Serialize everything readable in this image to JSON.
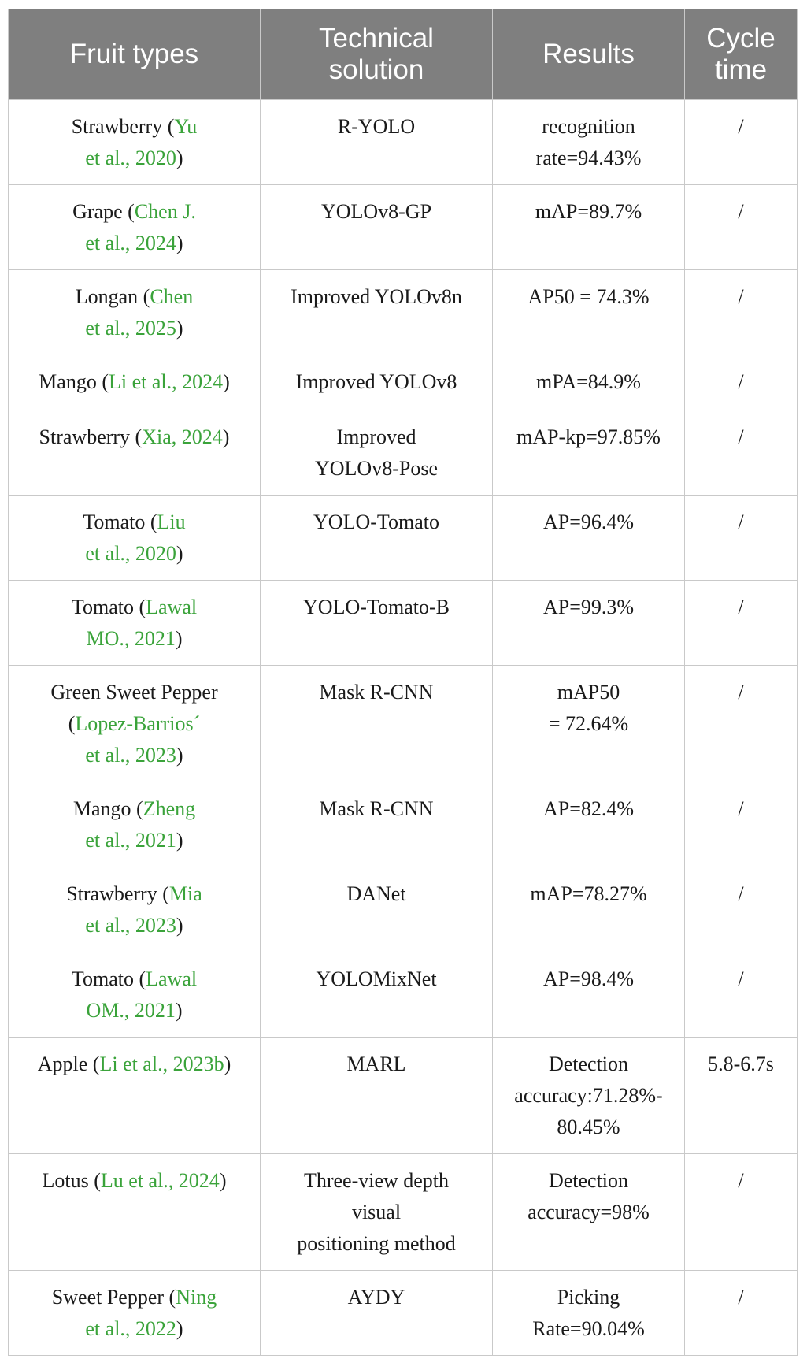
{
  "headers": [
    "Fruit types",
    "Technical\nsolution",
    "Results",
    "Cycle\ntime"
  ],
  "rows": [
    {
      "fruit": "Strawberry (",
      "cite": "Yu\net al., 2020",
      "close": ")",
      "tech": "R-YOLO",
      "result": "recognition\nrate=94.43%",
      "cycle": "/"
    },
    {
      "fruit": "Grape (",
      "cite": "Chen J.\net al., 2024",
      "close": ")",
      "tech": "YOLOv8-GP",
      "result": "mAP=89.7%",
      "cycle": "/"
    },
    {
      "fruit": "Longan (",
      "cite": "Chen\net al., 2025",
      "close": ")",
      "tech": "Improved YOLOv8n",
      "result": "AP50 = 74.3%",
      "cycle": "/"
    },
    {
      "fruit": "Mango (",
      "cite": "Li et al., 2024",
      "close": ")",
      "tech": "Improved YOLOv8",
      "result": "mPA=84.9%",
      "cycle": "/"
    },
    {
      "fruit": "Strawberry (",
      "cite": "Xia, 2024",
      "close": ")",
      "tech": "Improved\nYOLOv8-Pose",
      "result": "mAP-kp=97.85%",
      "cycle": "/"
    },
    {
      "fruit": "Tomato (",
      "cite": "Liu\net al., 2020",
      "close": ")",
      "tech": "YOLO-Tomato",
      "result": "AP=96.4%",
      "cycle": "/"
    },
    {
      "fruit": "Tomato (",
      "cite": "Lawal\nMO., 2021",
      "close": ")",
      "tech": "YOLO-Tomato-B",
      "result": "AP=99.3%",
      "cycle": "/"
    },
    {
      "fruit": "Green Sweet Pepper\n(",
      "cite": "Lopez-Barrios´\net al., 2023",
      "close": ")",
      "tech": "Mask R-CNN",
      "result": "mAP50\n= 72.64%",
      "cycle": "/"
    },
    {
      "fruit": "Mango (",
      "cite": "Zheng\net al., 2021",
      "close": ")",
      "tech": "Mask R-CNN",
      "result": "AP=82.4%",
      "cycle": "/"
    },
    {
      "fruit": "Strawberry (",
      "cite": "Mia\net al., 2023",
      "close": ")",
      "tech": "DANet",
      "result": "mAP=78.27%",
      "cycle": "/"
    },
    {
      "fruit": "Tomato (",
      "cite": "Lawal\nOM., 2021",
      "close": ")",
      "tech": "YOLOMixNet",
      "result": "AP=98.4%",
      "cycle": "/"
    },
    {
      "fruit": "Apple (",
      "cite": "Li et al., 2023b",
      "close": ")",
      "tech": "MARL",
      "result": "Detection\naccuracy:71.28%-\n80.45%",
      "cycle": "5.8-6.7s"
    },
    {
      "fruit": "Lotus (",
      "cite": "Lu et al., 2024",
      "close": ")",
      "tech": "Three-view depth\nvisual\npositioning method",
      "result": "Detection\naccuracy=98%",
      "cycle": "/"
    },
    {
      "fruit": "Sweet Pepper (",
      "cite": "Ning\net al., 2022",
      "close": ")",
      "tech": "AYDY",
      "result": "Picking\nRate=90.04%",
      "cycle": "/"
    }
  ]
}
